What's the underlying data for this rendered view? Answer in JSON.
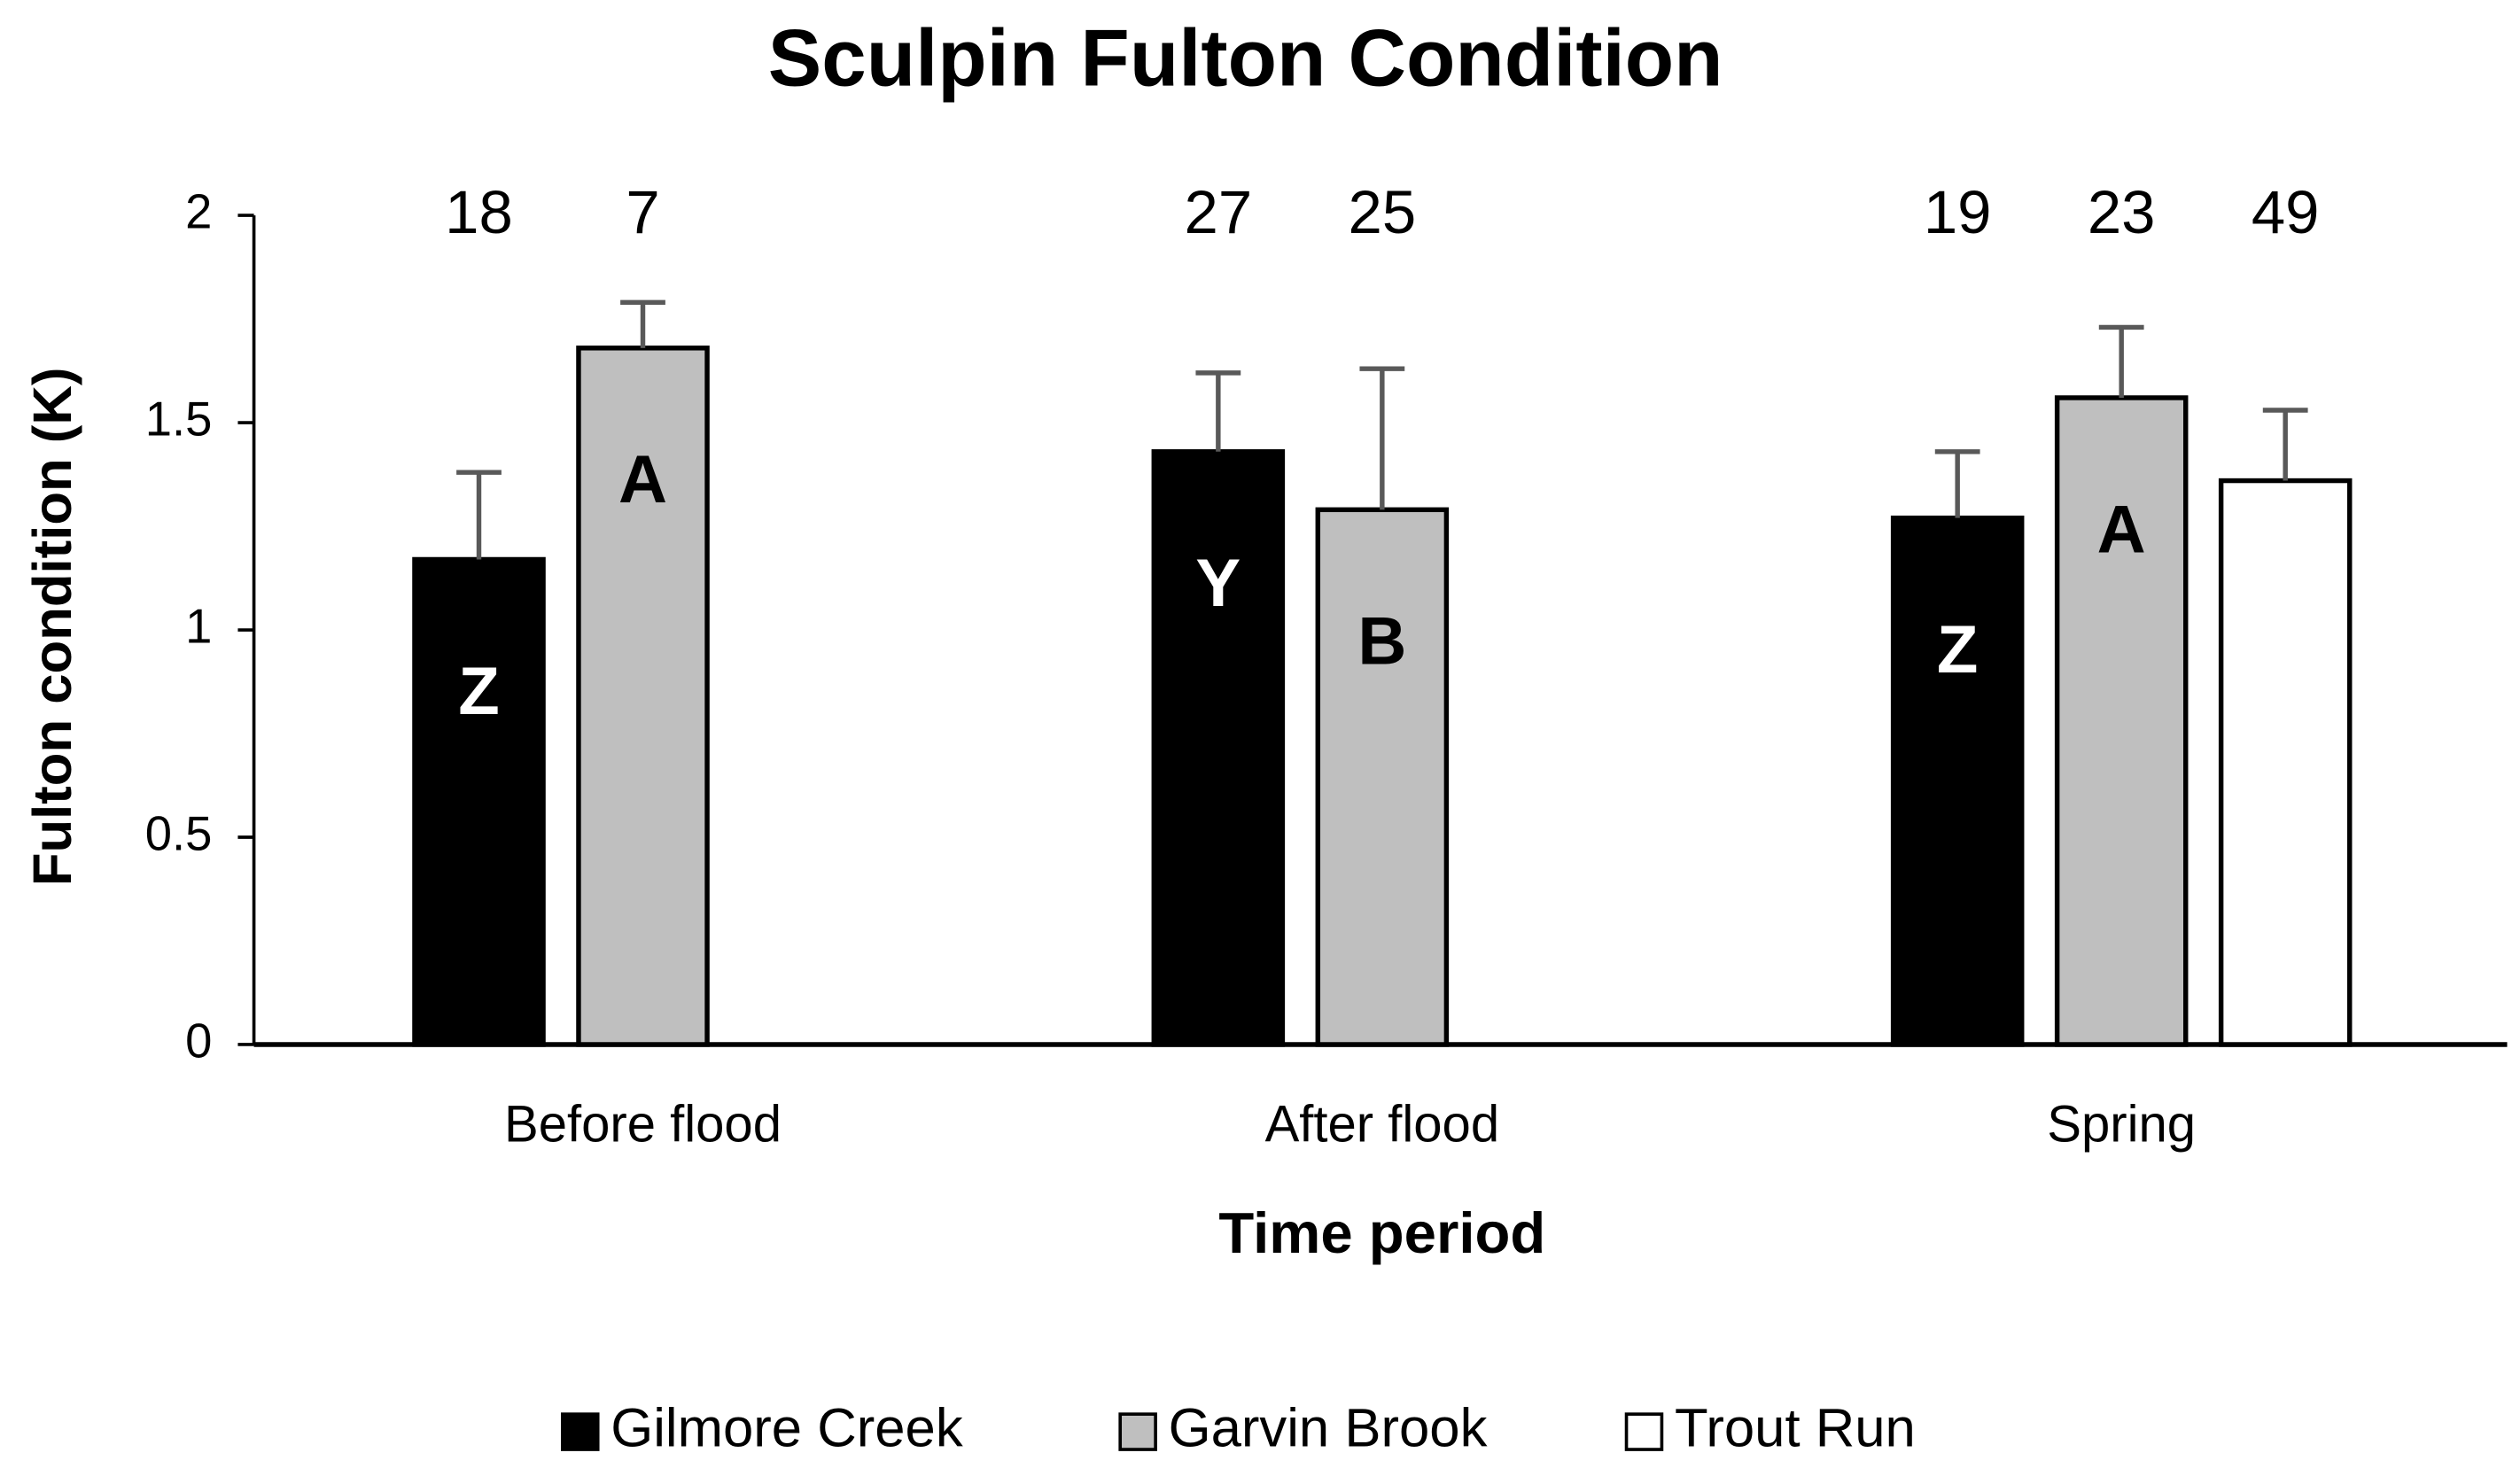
{
  "chart_data": {
    "type": "bar",
    "title": "Sculpin Fulton Condition",
    "x_label": "Time period",
    "y_label": "Fulton condition (K)",
    "categories": [
      "Before flood",
      "After flood",
      "Spring"
    ],
    "series": [
      {
        "name": "Gilmore Creek",
        "color": "#000000",
        "values": [
          1.17,
          1.43,
          1.27
        ],
        "errors": [
          0.21,
          0.19,
          0.16
        ],
        "n": [
          18,
          27,
          19
        ],
        "letters": [
          "Z",
          "Y",
          "Z"
        ],
        "letter_color": "#ffffff"
      },
      {
        "name": "Garvin Brook",
        "color": "#bfbfbf",
        "values": [
          1.68,
          1.29,
          1.56
        ],
        "errors": [
          0.11,
          0.34,
          0.17
        ],
        "n": [
          7,
          25,
          23
        ],
        "letters": [
          "A",
          "B",
          "A"
        ],
        "letter_color": "#000000"
      },
      {
        "name": "Trout Run",
        "color": "#ffffff",
        "values": [
          null,
          null,
          1.36
        ],
        "errors": [
          null,
          null,
          0.17
        ],
        "n": [
          null,
          null,
          49
        ],
        "letters": [
          null,
          null,
          null
        ],
        "letter_color": "#000000"
      }
    ],
    "ylim": [
      0,
      2
    ],
    "yticks": [
      0,
      0.5,
      1,
      1.5,
      2
    ],
    "grid": false,
    "legend": "bottom"
  }
}
